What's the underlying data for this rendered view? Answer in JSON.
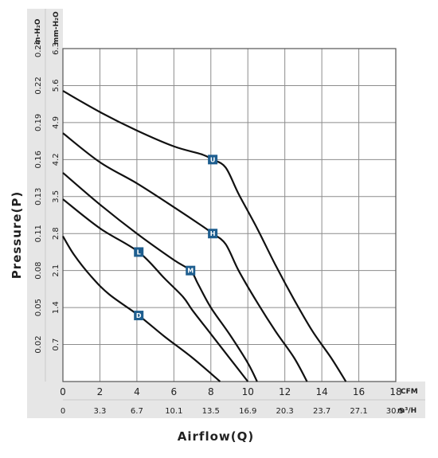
{
  "chart_data": {
    "type": "line",
    "title": "",
    "xlabel": "Airflow(Q)",
    "ylabel": "Pressure(P)",
    "x_unit_primary": "CFM",
    "x_unit_secondary": "m³/H",
    "y_unit_primary": "mm-H₂O",
    "y_unit_secondary": "in-H₂O",
    "xlim": [
      0,
      18
    ],
    "ylim": [
      0,
      6.3
    ],
    "x_ticks": [
      "0",
      "2",
      "4",
      "6",
      "8",
      "10",
      "12",
      "14",
      "16",
      "18"
    ],
    "x_ticks_secondary": [
      "0",
      "3.3",
      "6.7",
      "10.1",
      "13.5",
      "16.9",
      "20.3",
      "23.7",
      "27.1",
      "30.5"
    ],
    "y_ticks": [
      "0.7",
      "1.4",
      "2.1",
      "2.8",
      "3.5",
      "4.2",
      "4.9",
      "5.6",
      "6.3"
    ],
    "y_ticks_secondary": [
      "0.02",
      "0.05",
      "0.08",
      "0.11",
      "0.13",
      "0.16",
      "0.19",
      "0.22",
      "0.24"
    ],
    "grid": true,
    "series": [
      {
        "name": "U",
        "marker": {
          "x": 8.1,
          "y": 4.2
        },
        "points": [
          [
            0,
            5.5
          ],
          [
            2,
            5.1
          ],
          [
            4,
            4.75
          ],
          [
            6,
            4.45
          ],
          [
            7.5,
            4.3
          ],
          [
            8.1,
            4.2
          ],
          [
            8.8,
            4.05
          ],
          [
            9.5,
            3.55
          ],
          [
            10.5,
            2.9
          ],
          [
            11.5,
            2.2
          ],
          [
            12.5,
            1.55
          ],
          [
            13.5,
            0.95
          ],
          [
            14.5,
            0.45
          ],
          [
            15.3,
            0
          ]
        ]
      },
      {
        "name": "H",
        "marker": {
          "x": 8.1,
          "y": 2.8
        },
        "points": [
          [
            0,
            4.7
          ],
          [
            2,
            4.15
          ],
          [
            4,
            3.75
          ],
          [
            6,
            3.3
          ],
          [
            7.5,
            2.95
          ],
          [
            8.1,
            2.8
          ],
          [
            8.8,
            2.6
          ],
          [
            9.5,
            2.1
          ],
          [
            10.5,
            1.5
          ],
          [
            11.5,
            0.95
          ],
          [
            12.5,
            0.45
          ],
          [
            13.2,
            0
          ]
        ]
      },
      {
        "name": "M",
        "marker": {
          "x": 6.9,
          "y": 2.1
        },
        "points": [
          [
            0,
            3.95
          ],
          [
            2,
            3.35
          ],
          [
            4,
            2.8
          ],
          [
            6,
            2.3
          ],
          [
            6.9,
            2.1
          ],
          [
            7.3,
            1.85
          ],
          [
            8,
            1.4
          ],
          [
            9,
            0.9
          ],
          [
            10,
            0.35
          ],
          [
            10.5,
            0
          ]
        ]
      },
      {
        "name": "L",
        "marker": {
          "x": 4.1,
          "y": 2.45
        },
        "points": [
          [
            0,
            3.45
          ],
          [
            2,
            2.9
          ],
          [
            4.1,
            2.45
          ],
          [
            5.5,
            1.95
          ],
          [
            6.5,
            1.6
          ],
          [
            7,
            1.35
          ],
          [
            8,
            0.9
          ],
          [
            9,
            0.45
          ],
          [
            10,
            0
          ]
        ]
      },
      {
        "name": "D",
        "marker": {
          "x": 4.1,
          "y": 1.25
        },
        "points": [
          [
            0,
            2.75
          ],
          [
            0.6,
            2.4
          ],
          [
            1.5,
            2.0
          ],
          [
            2.5,
            1.65
          ],
          [
            4.1,
            1.25
          ],
          [
            5.5,
            0.85
          ],
          [
            7,
            0.45
          ],
          [
            8.5,
            0
          ]
        ]
      }
    ]
  },
  "colors": {
    "grid": "#8c8c8c",
    "curve": "#111111",
    "marker": "#1e5e8f",
    "axis_band": "#e6e6e6"
  }
}
